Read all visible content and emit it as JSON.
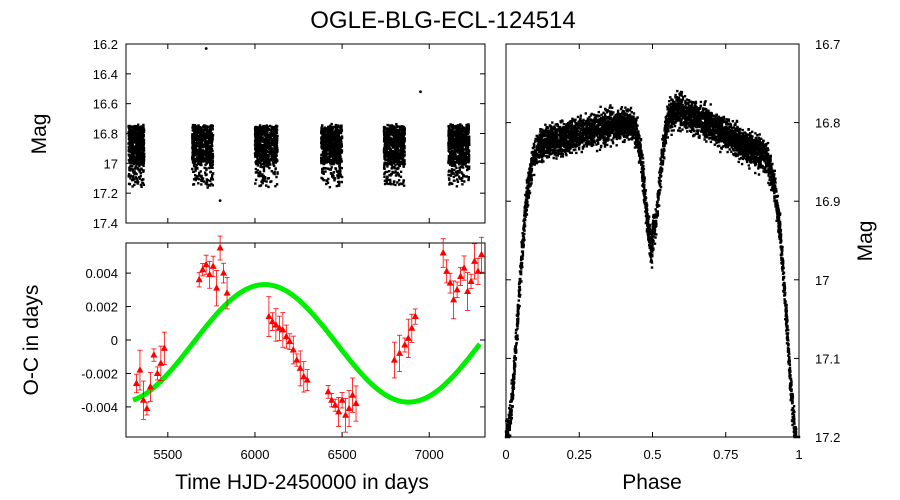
{
  "title": "OGLE-BLG-ECL-124514",
  "chart_data": [
    {
      "type": "scatter",
      "name": "light-curve-time",
      "xlabel": "",
      "ylabel": "Mag",
      "xlim": [
        5260,
        7320
      ],
      "ylim": [
        17.4,
        16.2
      ],
      "y_inverted": true,
      "yticks": [
        "16.2",
        "16.4",
        "16.6",
        "16.8",
        "17",
        "17.2",
        "17.4"
      ],
      "ytick_values": [
        16.2,
        16.4,
        16.6,
        16.8,
        17.0,
        17.2,
        17.4
      ],
      "seasons": [
        {
          "x_start": 5275,
          "x_end": 5365
        },
        {
          "x_start": 5640,
          "x_end": 5760
        },
        {
          "x_start": 6000,
          "x_end": 6130
        },
        {
          "x_start": 6380,
          "x_end": 6500
        },
        {
          "x_start": 6740,
          "x_end": 6860
        },
        {
          "x_start": 7110,
          "x_end": 7230
        }
      ],
      "mag_range": [
        16.75,
        17.15
      ],
      "outliers": [
        {
          "x": 5720,
          "y": 16.23
        },
        {
          "x": 5800,
          "y": 17.25
        },
        {
          "x": 6950,
          "y": 16.52
        }
      ]
    },
    {
      "type": "scatter+line",
      "name": "oc-diagram",
      "xlabel": "Time HJD-2450000 in days",
      "ylabel": "O-C in days",
      "xlim": [
        5260,
        7320
      ],
      "ylim": [
        -0.0058,
        0.0058
      ],
      "xticks": [
        "5500",
        "6000",
        "6500",
        "7000"
      ],
      "xtick_values": [
        5500,
        6000,
        6500,
        7000
      ],
      "yticks": [
        "0.004",
        "0.002",
        "0",
        "-0.002",
        "-0.004"
      ],
      "ytick_values": [
        0.004,
        0.002,
        0,
        -0.002,
        -0.004
      ],
      "fit": {
        "model": "sinusoid",
        "amplitude": 0.0037,
        "period": 1650,
        "phase_zero_x": 5330,
        "offset": -0.0002,
        "color": "#00ee00"
      },
      "points": [
        {
          "x": 5320,
          "y": -0.0026
        },
        {
          "x": 5340,
          "y": -0.0018
        },
        {
          "x": 5360,
          "y": -0.0036
        },
        {
          "x": 5380,
          "y": -0.0041
        },
        {
          "x": 5400,
          "y": -0.0028
        },
        {
          "x": 5420,
          "y": -0.0009
        },
        {
          "x": 5440,
          "y": -0.002
        },
        {
          "x": 5460,
          "y": -0.0014
        },
        {
          "x": 5480,
          "y": -0.0005
        },
        {
          "x": 5680,
          "y": 0.0036
        },
        {
          "x": 5700,
          "y": 0.0042
        },
        {
          "x": 5720,
          "y": 0.0045
        },
        {
          "x": 5740,
          "y": 0.0039
        },
        {
          "x": 5760,
          "y": 0.0044
        },
        {
          "x": 5780,
          "y": 0.0031
        },
        {
          "x": 5800,
          "y": 0.0055
        },
        {
          "x": 5820,
          "y": 0.004
        },
        {
          "x": 5840,
          "y": 0.0028
        },
        {
          "x": 6080,
          "y": 0.0014
        },
        {
          "x": 6100,
          "y": 0.0011
        },
        {
          "x": 6120,
          "y": 0.0009
        },
        {
          "x": 6140,
          "y": 0.0007
        },
        {
          "x": 6160,
          "y": 0.0006
        },
        {
          "x": 6180,
          "y": 0.0002
        },
        {
          "x": 6200,
          "y": -0.0001
        },
        {
          "x": 6220,
          "y": -0.0006
        },
        {
          "x": 6240,
          "y": -0.0012
        },
        {
          "x": 6260,
          "y": -0.0017
        },
        {
          "x": 6280,
          "y": -0.0022
        },
        {
          "x": 6300,
          "y": -0.0024
        },
        {
          "x": 6420,
          "y": -0.0031
        },
        {
          "x": 6440,
          "y": -0.0036
        },
        {
          "x": 6460,
          "y": -0.0039
        },
        {
          "x": 6480,
          "y": -0.0043
        },
        {
          "x": 6500,
          "y": -0.0036
        },
        {
          "x": 6520,
          "y": -0.0045
        },
        {
          "x": 6540,
          "y": -0.0041
        },
        {
          "x": 6560,
          "y": -0.0033
        },
        {
          "x": 6580,
          "y": -0.0038
        },
        {
          "x": 6800,
          "y": -0.0012
        },
        {
          "x": 6830,
          "y": -0.0008
        },
        {
          "x": 6860,
          "y": -0.0003
        },
        {
          "x": 6880,
          "y": 0.0001
        },
        {
          "x": 6900,
          "y": 0.0007
        },
        {
          "x": 6920,
          "y": 0.0014
        },
        {
          "x": 7080,
          "y": 0.0052
        },
        {
          "x": 7100,
          "y": 0.0041
        },
        {
          "x": 7120,
          "y": 0.0034
        },
        {
          "x": 7140,
          "y": 0.0024
        },
        {
          "x": 7160,
          "y": 0.003
        },
        {
          "x": 7180,
          "y": 0.0038
        },
        {
          "x": 7200,
          "y": 0.0043
        },
        {
          "x": 7220,
          "y": 0.0029
        },
        {
          "x": 7240,
          "y": 0.0035
        },
        {
          "x": 7260,
          "y": 0.0047
        },
        {
          "x": 7280,
          "y": 0.0041
        },
        {
          "x": 7300,
          "y": 0.0051
        }
      ],
      "point_color": "#ff0000"
    },
    {
      "type": "scatter",
      "name": "phased-light-curve",
      "xlabel": "Phase",
      "ylabel": "Mag",
      "xlim": [
        0,
        1
      ],
      "ylim": [
        17.2,
        16.7
      ],
      "y_inverted": true,
      "xticks": [
        "0",
        "0.25",
        "0.5",
        "0.75",
        "1"
      ],
      "xtick_values": [
        0,
        0.25,
        0.5,
        0.75,
        1
      ],
      "yticks": [
        "16.7",
        "16.8",
        "16.9",
        "17",
        "17.1",
        "17.2"
      ],
      "ytick_values": [
        16.7,
        16.8,
        16.9,
        17.0,
        17.1,
        17.2
      ],
      "primary_eclipse_depth_mag": 17.19,
      "secondary_eclipse": {
        "phase": 0.5,
        "mag": 17.0
      },
      "max_after_primary_mag": 16.82,
      "max_after_secondary_mag": 16.78,
      "scatter_mag": 0.03
    }
  ]
}
